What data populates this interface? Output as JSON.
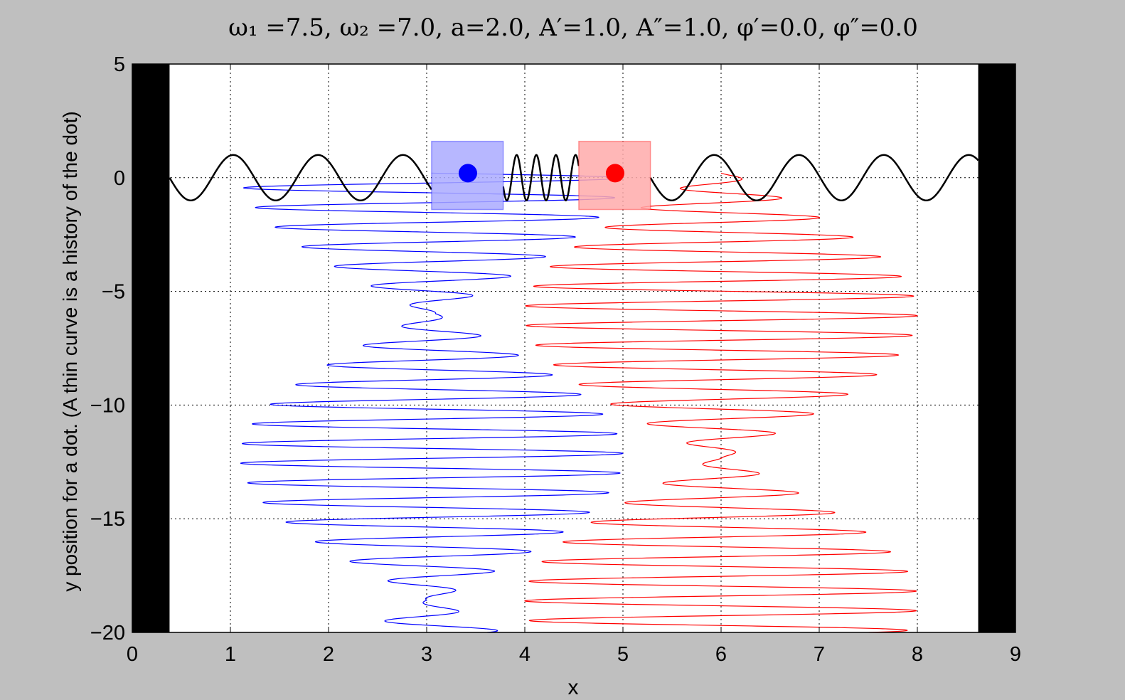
{
  "chart_data": {
    "type": "line",
    "title": "ω₁ =7.5, ω₂ =7.0, a=2.0, A′=1.0, A″=1.0, φ′=0.0, φ″=0.0",
    "xlabel": "x",
    "ylabel": "y position for a dot. (A thin curve is a history of the dot)",
    "xlim": [
      0,
      9
    ],
    "ylim": [
      -20,
      5
    ],
    "x_ticks": [
      "0",
      "1",
      "2",
      "3",
      "4",
      "5",
      "6",
      "7",
      "8",
      "9"
    ],
    "y_ticks": [
      "5",
      "0",
      "−5",
      "−10",
      "−15",
      "−20"
    ],
    "grid": true,
    "params": {
      "omega1": 7.5,
      "omega2": 7.0,
      "a": 2.0,
      "A1": 1.0,
      "A2": 1.0,
      "phi1": 0.0,
      "phi2": 0.0
    },
    "walls": [
      {
        "name": "left-wall",
        "x_range": [
          0,
          0.38
        ]
      },
      {
        "name": "right-wall",
        "x_range": [
          8.62,
          9
        ]
      }
    ],
    "string": {
      "color": "#000000",
      "amplitude": 1.0,
      "y_center": 0
    },
    "masses": [
      {
        "name": "blue-mass",
        "x": 3.42,
        "y": 0.2,
        "box_x_range": [
          3.05,
          3.78
        ],
        "box_y_range": [
          -1.4,
          1.6
        ],
        "color": "#0000ff",
        "box_color": "#aaaaff"
      },
      {
        "name": "red-mass",
        "x": 4.92,
        "y": 0.2,
        "box_x_range": [
          4.55,
          5.28
        ],
        "box_y_range": [
          -1.4,
          1.6
        ],
        "color": "#ff0000",
        "box_color": "#ffaaaa"
      }
    ],
    "series": [
      {
        "name": "blue trajectory",
        "color": "#0000ff",
        "center": 3.05,
        "start_y": 0.2,
        "end_y": -20,
        "period": 0.865,
        "beat_period": 12.6,
        "amp_max": 1.95,
        "amp_min": 0.05,
        "beat_phase": 0.32
      },
      {
        "name": "red trajectory",
        "color": "#ff0000",
        "center": 6.0,
        "start_y": 0.2,
        "end_y": -20,
        "period": 0.865,
        "beat_period": 12.6,
        "amp_max": 2.0,
        "amp_min": 0.05,
        "beat_phase": -6.0
      }
    ]
  }
}
